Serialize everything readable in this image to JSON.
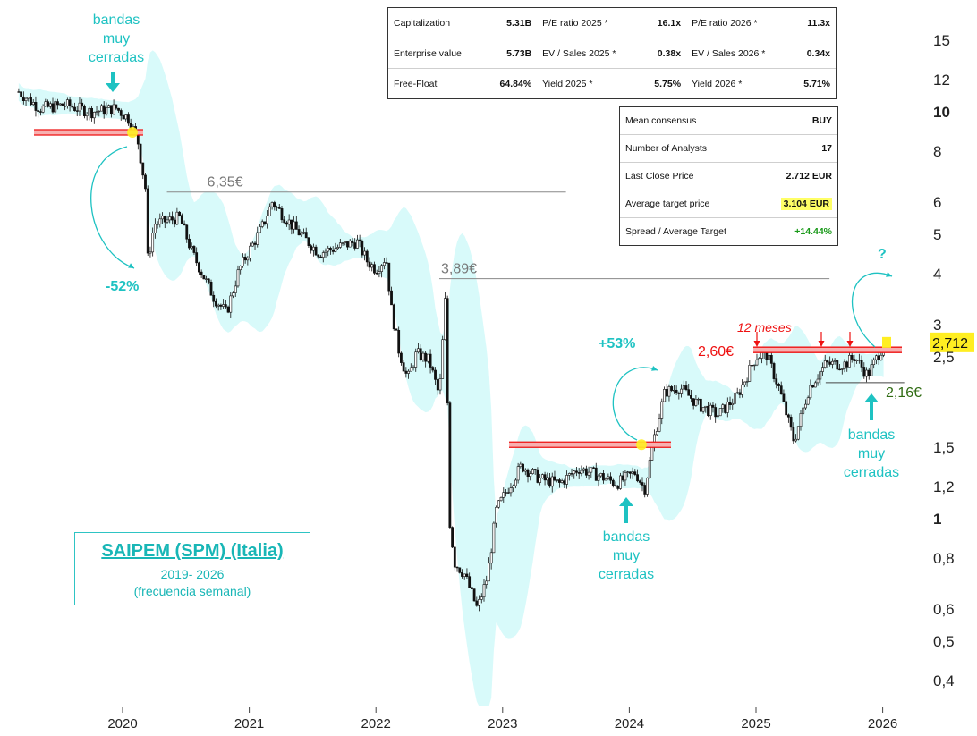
{
  "chart_data": {
    "type": "candlestick",
    "title": "SAIPEM (SPM) (Italia)",
    "subtitle": "2019- 2026",
    "subtitle2": "(frecuencia semanal)",
    "y_scale": "log",
    "ylim": [
      0.32,
      19
    ],
    "x_ticks": [
      "2020",
      "2021",
      "2022",
      "2023",
      "2024",
      "2025",
      "2026"
    ],
    "y_ticks": [
      {
        "v": 15,
        "label": "15",
        "bold": false
      },
      {
        "v": 12,
        "label": "12",
        "bold": false
      },
      {
        "v": 10,
        "label": "10",
        "bold": true
      },
      {
        "v": 8,
        "label": "8",
        "bold": false
      },
      {
        "v": 6,
        "label": "6",
        "bold": false
      },
      {
        "v": 5,
        "label": "5",
        "bold": false
      },
      {
        "v": 4,
        "label": "4",
        "bold": false
      },
      {
        "v": 3,
        "label": "3",
        "bold": false
      },
      {
        "v": 2.5,
        "label": "2,5",
        "bold": false
      },
      {
        "v": 1.5,
        "label": "1,5",
        "bold": false
      },
      {
        "v": 1.2,
        "label": "1,2",
        "bold": false
      },
      {
        "v": 1,
        "label": "1",
        "bold": true
      },
      {
        "v": 0.8,
        "label": "0,8",
        "bold": false
      },
      {
        "v": 0.6,
        "label": "0,6",
        "bold": false
      },
      {
        "v": 0.5,
        "label": "0,5",
        "bold": false
      },
      {
        "v": 0.4,
        "label": "0,4",
        "bold": false
      }
    ],
    "price_path": [
      [
        2019.18,
        11.2
      ],
      [
        2019.35,
        10.2
      ],
      [
        2019.55,
        10.4
      ],
      [
        2019.75,
        10.0
      ],
      [
        2019.95,
        10.2
      ],
      [
        2020.05,
        9.6
      ],
      [
        2020.12,
        8.5
      ],
      [
        2020.18,
        6.5
      ],
      [
        2020.2,
        4.3
      ],
      [
        2020.25,
        5.3
      ],
      [
        2020.45,
        5.5
      ],
      [
        2020.55,
        4.5
      ],
      [
        2020.72,
        3.5
      ],
      [
        2020.82,
        3.2
      ],
      [
        2020.92,
        4.1
      ],
      [
        2021.1,
        5.2
      ],
      [
        2021.18,
        6.0
      ],
      [
        2021.35,
        5.2
      ],
      [
        2021.55,
        4.5
      ],
      [
        2021.75,
        4.7
      ],
      [
        2021.85,
        4.8
      ],
      [
        2021.93,
        4.3
      ],
      [
        2022.0,
        4.1
      ],
      [
        2022.08,
        4.4
      ],
      [
        2022.12,
        3.3
      ],
      [
        2022.18,
        2.6
      ],
      [
        2022.25,
        2.2
      ],
      [
        2022.32,
        2.55
      ],
      [
        2022.42,
        2.45
      ],
      [
        2022.5,
        2.0
      ],
      [
        2022.55,
        3.6
      ],
      [
        2022.58,
        1.0
      ],
      [
        2022.62,
        0.78
      ],
      [
        2022.7,
        0.73
      ],
      [
        2022.8,
        0.6
      ],
      [
        2022.88,
        0.72
      ],
      [
        2022.95,
        1.05
      ],
      [
        2023.05,
        1.2
      ],
      [
        2023.15,
        1.35
      ],
      [
        2023.3,
        1.25
      ],
      [
        2023.45,
        1.22
      ],
      [
        2023.6,
        1.33
      ],
      [
        2023.75,
        1.28
      ],
      [
        2023.9,
        1.22
      ],
      [
        2024.05,
        1.3
      ],
      [
        2024.12,
        1.18
      ],
      [
        2024.2,
        1.6
      ],
      [
        2024.28,
        2.05
      ],
      [
        2024.4,
        2.1
      ],
      [
        2024.55,
        1.9
      ],
      [
        2024.7,
        1.8
      ],
      [
        2024.85,
        2.0
      ],
      [
        2025.0,
        2.5
      ],
      [
        2025.08,
        2.55
      ],
      [
        2025.18,
        2.1
      ],
      [
        2025.3,
        1.55
      ],
      [
        2025.42,
        2.1
      ],
      [
        2025.55,
        2.4
      ],
      [
        2025.7,
        2.4
      ],
      [
        2025.78,
        2.5
      ],
      [
        2025.88,
        2.25
      ],
      [
        2026.0,
        2.65
      ],
      [
        2026.02,
        2.712
      ]
    ],
    "horizontal_levels": [
      {
        "label": "6,35€",
        "value": 6.35,
        "x_from": 2020.35,
        "x_to": 2023.5
      },
      {
        "label": "3,89€",
        "value": 3.89,
        "x_from": 2022.5,
        "x_to": 2025.58
      },
      {
        "label": "2,60€",
        "value": 2.6,
        "x_from": 2024.95,
        "x_to": 2026.17
      },
      {
        "label": "2,16€",
        "value": 2.16,
        "x_from": 2025.55,
        "x_to": 2026.17
      }
    ],
    "last_price_label": "2,712",
    "annotations": {
      "bandas": "bandas",
      "muy": "muy",
      "cerradas": "cerradas",
      "drop": "-52%",
      "rise": "+53%",
      "twelve_months": "12 meses",
      "question": "?"
    }
  },
  "fundamentals": {
    "rows": [
      [
        [
          "Capitalization",
          "5.31B"
        ],
        [
          "P/E ratio 2025 *",
          "16.1x"
        ],
        [
          "P/E ratio 2026 *",
          "11.3x"
        ]
      ],
      [
        [
          "Enterprise value",
          "5.73B"
        ],
        [
          "EV / Sales 2025 *",
          "0.38x"
        ],
        [
          "EV / Sales 2026 *",
          "0.34x"
        ]
      ],
      [
        [
          "Free-Float",
          "64.84%"
        ],
        [
          "Yield 2025 *",
          "5.75%"
        ],
        [
          "Yield 2026 *",
          "5.71%"
        ]
      ]
    ]
  },
  "consensus": {
    "rows": [
      [
        "Mean consensus",
        "BUY"
      ],
      [
        "Number of Analysts",
        "17"
      ],
      [
        "Last Close Price",
        "2.712 EUR"
      ],
      [
        "Average target price",
        "3.104 EUR"
      ],
      [
        "Spread / Average Target",
        "+14.44%"
      ]
    ]
  },
  "colors": {
    "band": "#d8fafa",
    "cyan": "#1ec2c2",
    "red": "#ee1111",
    "green": "#1a9a1a",
    "last_price_bg": "#ffee22"
  }
}
